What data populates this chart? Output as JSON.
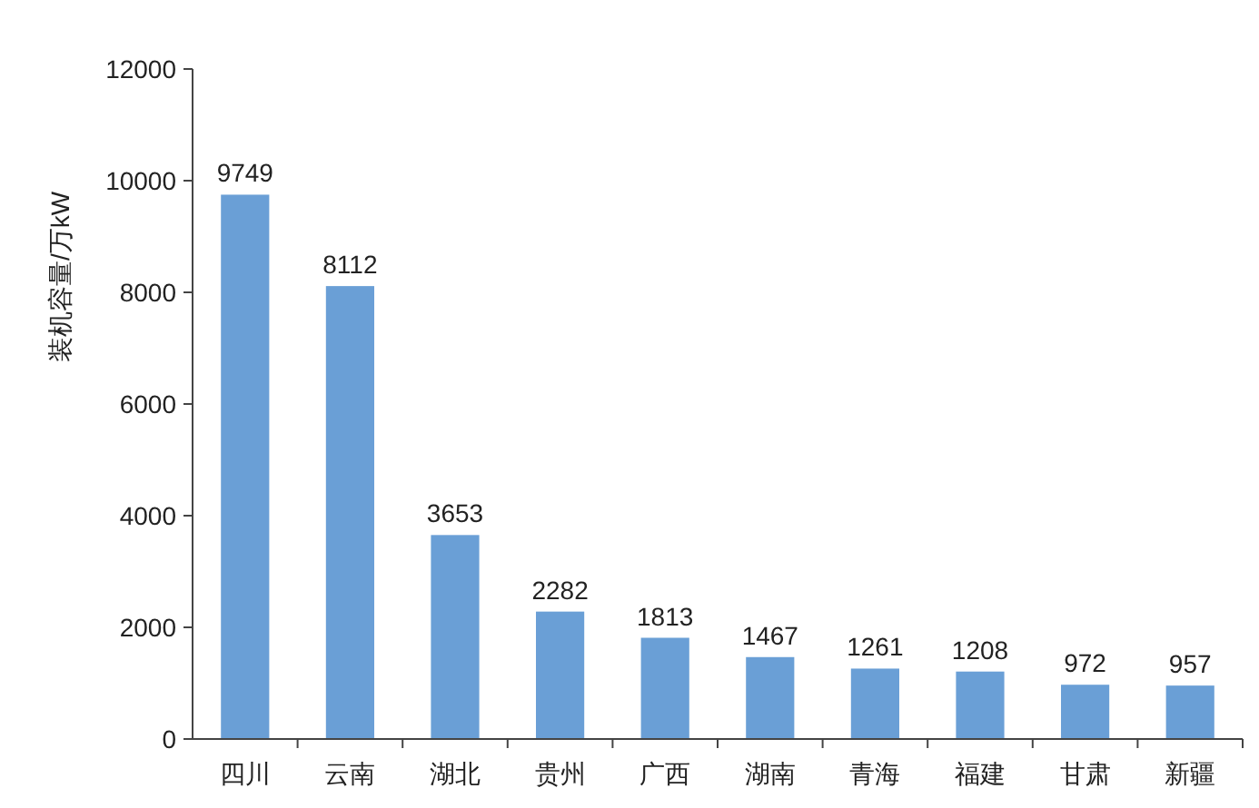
{
  "chart_data": {
    "type": "bar",
    "ylabel": "装机容量/万kW",
    "categories": [
      "四川",
      "云南",
      "湖北",
      "贵州",
      "广西",
      "湖南",
      "青海",
      "福建",
      "甘肃",
      "新疆"
    ],
    "values": [
      9749,
      8112,
      3653,
      2282,
      1813,
      1467,
      1261,
      1208,
      972,
      957
    ],
    "color": "#6a9fd6",
    "ylim": [
      0,
      12000
    ],
    "yticks": [
      0,
      2000,
      4000,
      6000,
      8000,
      10000,
      12000
    ],
    "data_labels": true,
    "grid": false
  }
}
